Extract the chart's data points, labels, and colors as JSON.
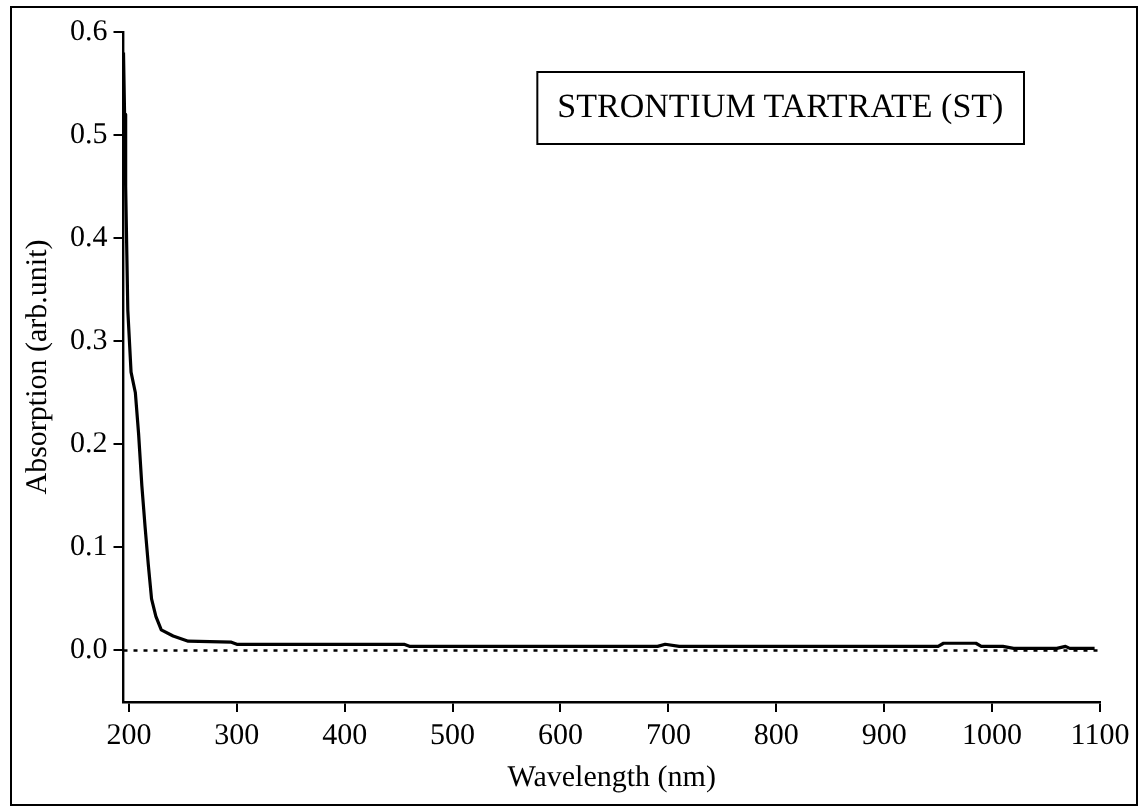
{
  "chart_data": {
    "type": "line",
    "xlabel": "Wavelength (nm)",
    "ylabel": "Absorption (arb.unit)",
    "annotations": [
      "STRONTIUM TARTRATE (ST)"
    ],
    "series": [
      {
        "color": "#000000",
        "x": [
          195,
          196,
          197,
          199,
          202,
          206,
          209,
          212,
          215,
          218,
          221,
          225,
          230,
          241,
          255,
          295,
          300,
          455,
          460,
          690,
          697,
          710,
          950,
          955,
          985,
          990,
          1010,
          1020,
          1060,
          1068,
          1072,
          1095
        ],
        "values": [
          0.58,
          0.52,
          0.45,
          0.33,
          0.27,
          0.25,
          0.21,
          0.16,
          0.12,
          0.083,
          0.05,
          0.033,
          0.02,
          0.014,
          0.009,
          0.008,
          0.006,
          0.006,
          0.004,
          0.004,
          0.006,
          0.004,
          0.004,
          0.007,
          0.007,
          0.004,
          0.004,
          0.002,
          0.002,
          0.004,
          0.002,
          0.002
        ]
      }
    ],
    "ref_lines": [
      {
        "axis": "y",
        "value": 0,
        "color": "#000000",
        "line_style": "dotted"
      }
    ],
    "xlim": [
      195,
      1100
    ],
    "xticks": [
      200,
      300,
      400,
      500,
      600,
      700,
      800,
      900,
      1000,
      1100
    ],
    "ylim": [
      -0.05,
      0.6
    ],
    "yticks": [
      {
        "value": 0,
        "label": "0.0"
      },
      0.1,
      0.2,
      0.3,
      0.4,
      0.5,
      0.6
    ],
    "grid": false,
    "legend": false,
    "marker": "none",
    "line_style": "solid"
  }
}
